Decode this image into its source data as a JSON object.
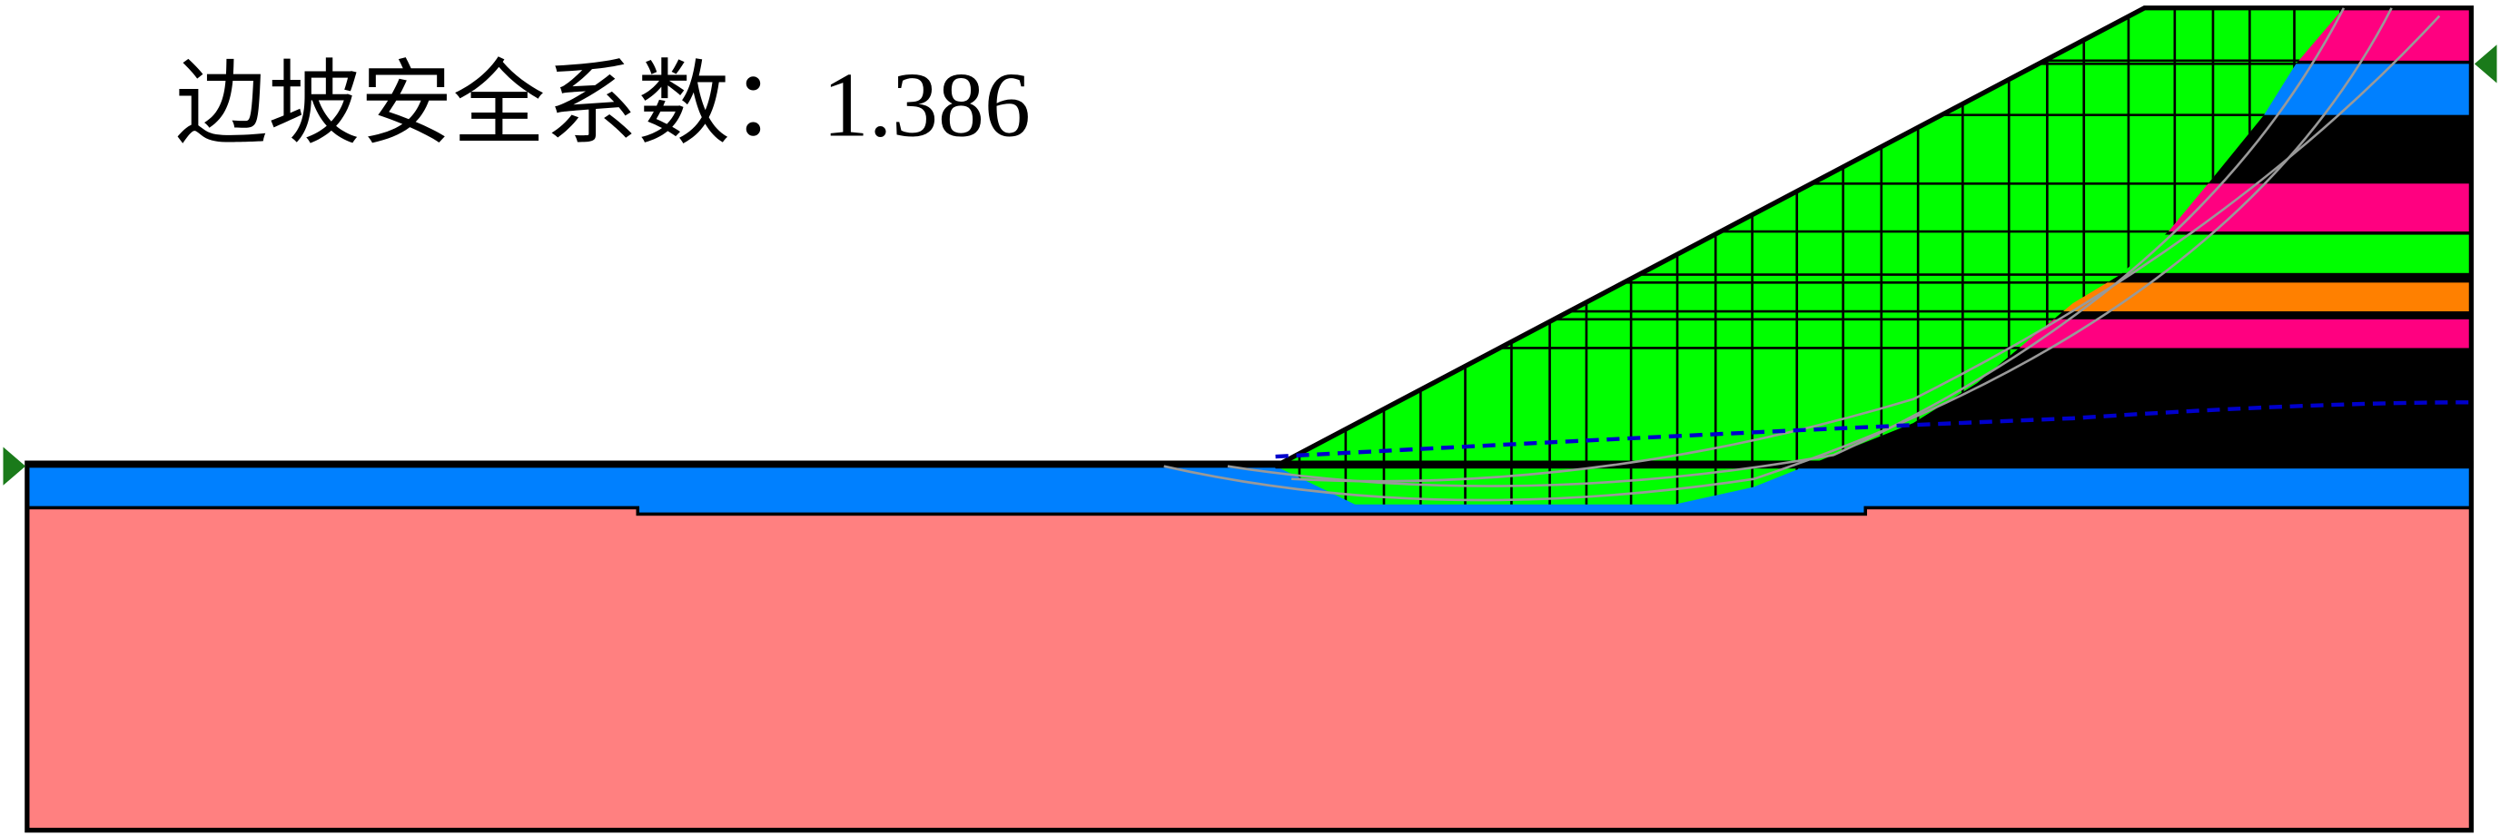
{
  "title": "边坡安全系数：1.386"
}
